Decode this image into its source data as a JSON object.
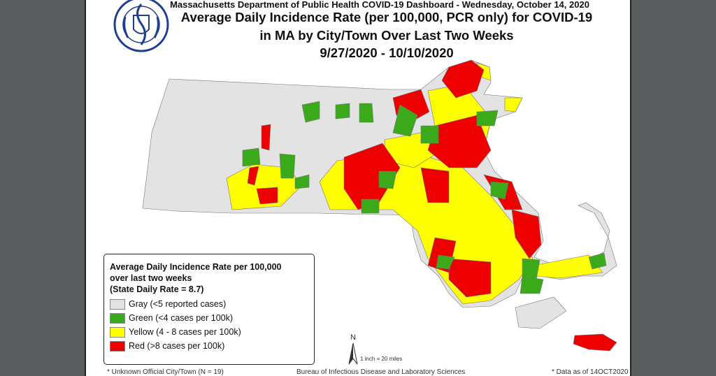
{
  "header": {
    "dashboard_line": "Massachusetts Department of Public Health COVID-19 Dashboard - Wednesday, October 14, 2020",
    "title_line1": "Average Daily Incidence Rate (per 100,000, PCR only) for COVID-19",
    "title_line2": "in MA by City/Town Over Last Two Weeks",
    "date_range": "9/27/2020 - 10/10/2020",
    "logo_text": "COMMONWEALTH OF MASSACHUSETTS DEPARTMENT OF PUBLIC HEALTH"
  },
  "legend": {
    "title_line1": "Average Daily Incidence Rate per 100,000",
    "title_line2": "over last two weeks",
    "state_rate": "(State Daily Rate = 8.7)",
    "items": [
      {
        "label": "Gray (<5 reported cases)",
        "color": "#e3e3e3"
      },
      {
        "label": "Green (<4 cases per 100k)",
        "color": "#3aaa1a"
      },
      {
        "label": "Yellow (4 - 8 cases per 100k)",
        "color": "#ffff00"
      },
      {
        "label": "Red (>8 cases per 100k)",
        "color": "#ee0000"
      }
    ]
  },
  "map": {
    "north_label": "N",
    "scale": "1 inch = 20 miles"
  },
  "footer": {
    "unknown": "* Unknown Official City/Town (N = 19)",
    "bureau": "Bureau of Infectious Disease and Laboratory Sciences",
    "data_as_of": "* Data as of 14OCT2020"
  }
}
